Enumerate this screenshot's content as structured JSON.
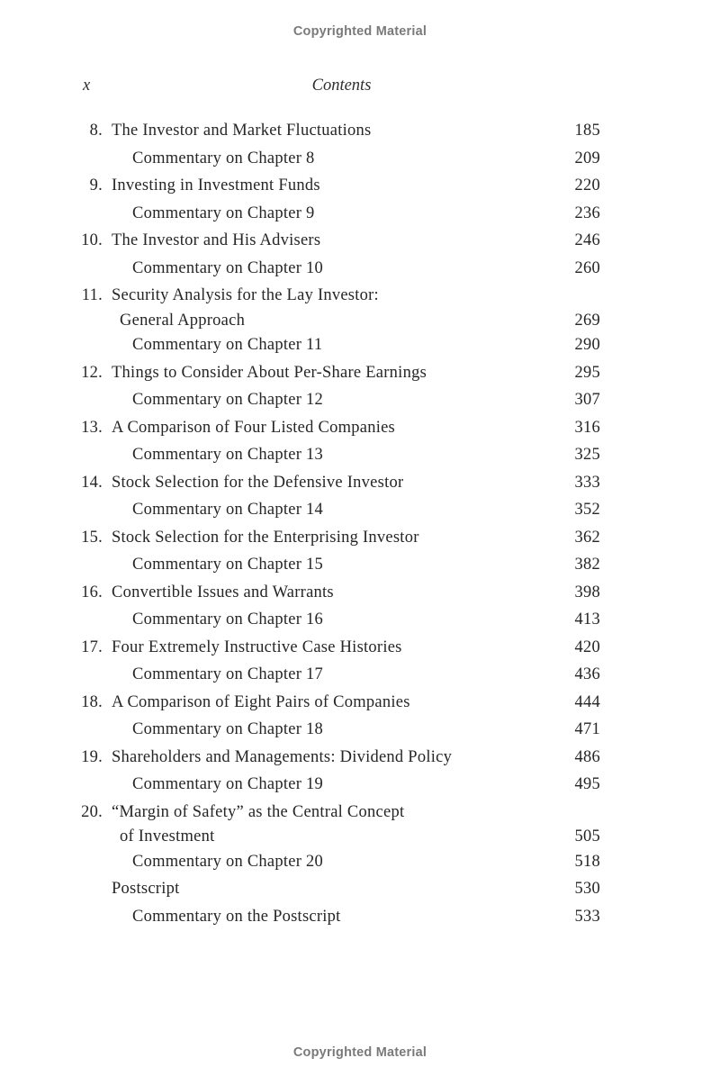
{
  "page": {
    "top_banner": "Copyrighted Material",
    "bottom_banner": "Copyrighted Material",
    "folio": "x",
    "header_title": "Contents"
  },
  "colors": {
    "text": "#262626",
    "banner_gray": "#7a7a7a",
    "background": "#ffffff"
  },
  "toc": {
    "entries": [
      {
        "num": "8.",
        "title": "The Investor and Market Fluctuations",
        "page": "185",
        "type": "chapter"
      },
      {
        "num": "",
        "title": "Commentary on Chapter 8",
        "page": "209",
        "type": "commentary"
      },
      {
        "num": "9.",
        "title": "Investing in Investment Funds",
        "page": "220",
        "type": "chapter"
      },
      {
        "num": "",
        "title": "Commentary on Chapter 9",
        "page": "236",
        "type": "commentary"
      },
      {
        "num": "10.",
        "title": "The Investor and His Advisers",
        "page": "246",
        "type": "chapter"
      },
      {
        "num": "",
        "title": "Commentary on Chapter 10",
        "page": "260",
        "type": "commentary"
      },
      {
        "num": "11.",
        "title": "Security Analysis for the Lay Investor:",
        "title2": "General Approach",
        "page": "269",
        "type": "chapter"
      },
      {
        "num": "",
        "title": "Commentary on Chapter 11",
        "page": "290",
        "type": "commentary"
      },
      {
        "num": "12.",
        "title": "Things to Consider About Per-Share Earnings",
        "page": "295",
        "type": "chapter"
      },
      {
        "num": "",
        "title": "Commentary on Chapter 12",
        "page": "307",
        "type": "commentary"
      },
      {
        "num": "13.",
        "title": "A Comparison of Four Listed Companies",
        "page": "316",
        "type": "chapter"
      },
      {
        "num": "",
        "title": "Commentary on Chapter 13",
        "page": "325",
        "type": "commentary"
      },
      {
        "num": "14.",
        "title": "Stock Selection for the Defensive Investor",
        "page": "333",
        "type": "chapter"
      },
      {
        "num": "",
        "title": "Commentary on Chapter 14",
        "page": "352",
        "type": "commentary"
      },
      {
        "num": "15.",
        "title": "Stock Selection for the Enterprising Investor",
        "page": "362",
        "type": "chapter"
      },
      {
        "num": "",
        "title": "Commentary on Chapter 15",
        "page": "382",
        "type": "commentary"
      },
      {
        "num": "16.",
        "title": "Convertible Issues and Warrants",
        "page": "398",
        "type": "chapter"
      },
      {
        "num": "",
        "title": "Commentary on Chapter 16",
        "page": "413",
        "type": "commentary"
      },
      {
        "num": "17.",
        "title": "Four Extremely Instructive Case Histories",
        "page": "420",
        "type": "chapter"
      },
      {
        "num": "",
        "title": "Commentary on Chapter 17",
        "page": "436",
        "type": "commentary"
      },
      {
        "num": "18.",
        "title": "A Comparison of Eight Pairs of Companies",
        "page": "444",
        "type": "chapter"
      },
      {
        "num": "",
        "title": "Commentary on Chapter 18",
        "page": "471",
        "type": "commentary"
      },
      {
        "num": "19.",
        "title": "Shareholders and Managements: Dividend Policy",
        "page": "486",
        "type": "chapter"
      },
      {
        "num": "",
        "title": "Commentary on Chapter 19",
        "page": "495",
        "type": "commentary"
      },
      {
        "num": "20.",
        "title": "“Margin of Safety” as the Central Concept",
        "title2": "of Investment",
        "page": "505",
        "type": "chapter"
      },
      {
        "num": "",
        "title": "Commentary on Chapter 20",
        "page": "518",
        "type": "commentary"
      },
      {
        "num": "",
        "title": "Postscript",
        "page": "530",
        "type": "section"
      },
      {
        "num": "",
        "title": "Commentary on the Postscript",
        "page": "533",
        "type": "commentary"
      }
    ]
  }
}
